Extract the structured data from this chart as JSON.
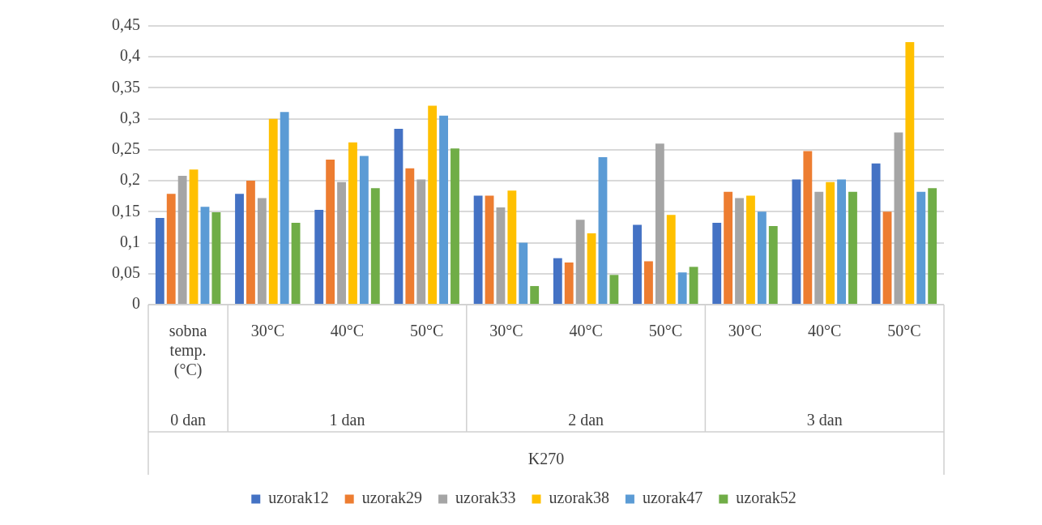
{
  "chart_data": {
    "type": "bar",
    "xlabel": "K270",
    "categories": [
      "sobna temp. (°C)",
      "30°C",
      "40°C",
      "50°C",
      "30°C",
      "40°C",
      "50°C",
      "30°C",
      "40°C",
      "50°C"
    ],
    "annotations": [
      "0 dan",
      "1 dan",
      "2 dan",
      "3 dan"
    ],
    "series": [
      {
        "name": "uzorak12",
        "color": "#4472c4",
        "values": [
          0.14,
          0.179,
          0.153,
          0.284,
          0.176,
          0.075,
          0.129,
          0.132,
          0.202,
          0.228
        ]
      },
      {
        "name": "uzorak29",
        "color": "#ed7d31",
        "values": [
          0.179,
          0.2,
          0.234,
          0.22,
          0.176,
          0.068,
          0.07,
          0.182,
          0.248,
          0.15
        ]
      },
      {
        "name": "uzorak33",
        "color": "#a5a5a5",
        "values": [
          0.208,
          0.172,
          0.198,
          0.202,
          0.157,
          0.137,
          0.26,
          0.172,
          0.182,
          0.278
        ]
      },
      {
        "name": "uzorak38",
        "color": "#ffc000",
        "values": [
          0.218,
          0.3,
          0.262,
          0.321,
          0.184,
          0.115,
          0.145,
          0.176,
          0.198,
          0.424
        ]
      },
      {
        "name": "uzorak47",
        "color": "#5b9bd5",
        "values": [
          0.158,
          0.311,
          0.24,
          0.305,
          0.1,
          0.238,
          0.052,
          0.15,
          0.202,
          0.182
        ]
      },
      {
        "name": "uzorak52",
        "color": "#70ad47",
        "values": [
          0.149,
          0.132,
          0.188,
          0.252,
          0.03,
          0.048,
          0.061,
          0.127,
          0.182,
          0.188
        ]
      }
    ],
    "ylim": [
      0,
      0.45
    ],
    "yticks": [
      {
        "value": 0,
        "label": "0"
      },
      {
        "value": 0.05,
        "label": "0,05"
      },
      {
        "value": 0.1,
        "label": "0,1"
      },
      {
        "value": 0.15,
        "label": "0,15"
      },
      {
        "value": 0.2,
        "label": "0,2"
      },
      {
        "value": 0.25,
        "label": "0,25"
      },
      {
        "value": 0.3,
        "label": "0,3"
      },
      {
        "value": 0.35,
        "label": "0,35"
      },
      {
        "value": 0.4,
        "label": "0,4"
      },
      {
        "value": 0.45,
        "label": "0,45"
      }
    ],
    "grid": "y",
    "legend": "bottom"
  }
}
